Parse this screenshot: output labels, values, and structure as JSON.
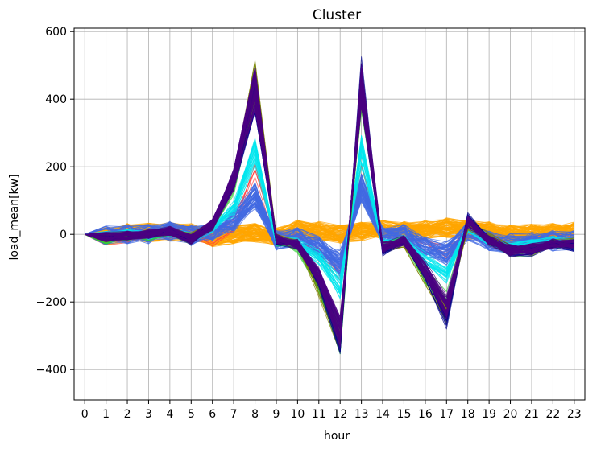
{
  "chart_data": {
    "type": "line",
    "title": "Cluster",
    "xlabel": "hour",
    "ylabel": "load_mean[kw]",
    "x": [
      0,
      1,
      2,
      3,
      4,
      5,
      6,
      7,
      8,
      9,
      10,
      11,
      12,
      13,
      14,
      15,
      16,
      17,
      18,
      19,
      20,
      21,
      22,
      23
    ],
    "xlim": [
      -0.5,
      23.5
    ],
    "ylim": [
      -490,
      610
    ],
    "yticks": [
      -400,
      -200,
      0,
      200,
      400,
      600
    ],
    "grid": true,
    "line_style": "many thin overlapping lines per cluster",
    "series": [
      {
        "color": "#ffa500",
        "count": 90,
        "spread": 28,
        "values": [
          0,
          -5,
          5,
          5,
          10,
          5,
          -10,
          0,
          5,
          -10,
          15,
          10,
          0,
          10,
          15,
          10,
          15,
          20,
          15,
          10,
          0,
          5,
          5,
          10
        ]
      },
      {
        "color": "#ff4040",
        "count": 6,
        "spread": 20,
        "values": [
          0,
          -15,
          -10,
          -5,
          10,
          -5,
          -20,
          30,
          200,
          -10,
          -10,
          -60,
          -120,
          180,
          -20,
          -10,
          -30,
          -60,
          10,
          -20,
          -40,
          -30,
          -20,
          -20
        ]
      },
      {
        "color": "#4169e1",
        "count": 60,
        "spread": 30,
        "values": [
          0,
          -5,
          0,
          0,
          10,
          -5,
          10,
          40,
          120,
          -20,
          -10,
          -40,
          -90,
          140,
          -10,
          0,
          -40,
          -60,
          10,
          -20,
          -30,
          -25,
          -20,
          -20
        ]
      },
      {
        "color": "#00e5ee",
        "count": 25,
        "spread": 15,
        "values": [
          0,
          -5,
          0,
          0,
          10,
          -10,
          20,
          80,
          260,
          -20,
          -30,
          -70,
          -160,
          260,
          -30,
          -20,
          -80,
          -120,
          20,
          -20,
          -40,
          -30,
          -20,
          -30
        ]
      },
      {
        "color": "#32cd32",
        "count": 14,
        "spread": 15,
        "values": [
          0,
          -15,
          -5,
          -5,
          10,
          -20,
          30,
          150,
          470,
          -20,
          -40,
          -160,
          -330,
          440,
          -40,
          -20,
          -130,
          -220,
          40,
          -20,
          -50,
          -50,
          -30,
          -30
        ]
      },
      {
        "color": "#808000",
        "count": 14,
        "spread": 15,
        "values": [
          0,
          -10,
          -5,
          0,
          10,
          -10,
          30,
          160,
          490,
          -10,
          -30,
          -170,
          -340,
          480,
          -40,
          -30,
          -140,
          -260,
          30,
          -10,
          -50,
          -50,
          -30,
          -30
        ]
      },
      {
        "color": "#00008b",
        "count": 25,
        "spread": 12,
        "values": [
          0,
          -10,
          -5,
          0,
          10,
          -20,
          30,
          170,
          450,
          -20,
          -30,
          -140,
          -320,
          470,
          -50,
          -20,
          -120,
          -250,
          50,
          -20,
          -50,
          -50,
          -30,
          -40
        ]
      },
      {
        "color": "#4b0082",
        "count": 45,
        "spread": 14,
        "values": [
          0,
          -8,
          -3,
          0,
          10,
          -15,
          30,
          170,
          460,
          -15,
          -30,
          -130,
          -300,
          460,
          -40,
          -20,
          -110,
          -230,
          40,
          -20,
          -50,
          -45,
          -30,
          -30
        ]
      }
    ]
  }
}
